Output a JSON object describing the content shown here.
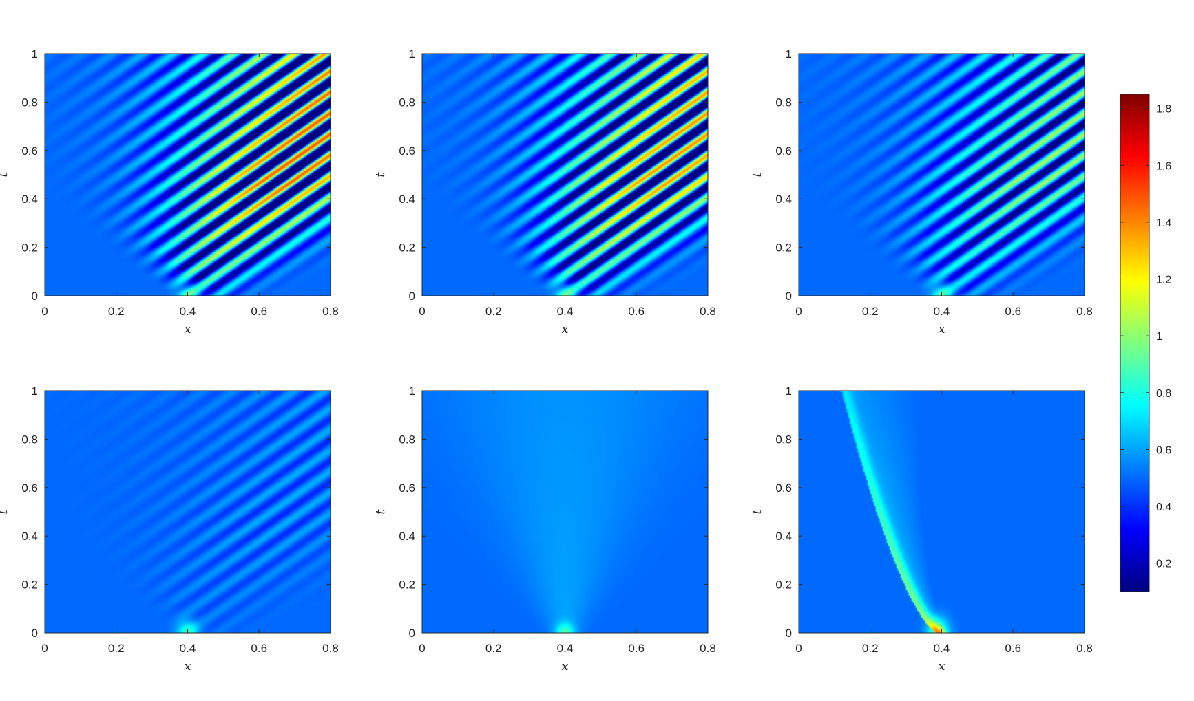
{
  "figure": {
    "layout": "2x3 grid of heatmaps with one shared vertical colorbar on the right"
  },
  "chart_data": [
    {
      "type": "heatmap",
      "panel": "row1-col1",
      "xlabel": "x",
      "ylabel": "t",
      "xlim": [
        0,
        0.8
      ],
      "ylim": [
        0,
        1
      ],
      "xticks": [
        "0",
        "0.2",
        "0.4",
        "0.6",
        "0.8"
      ],
      "yticks": [
        "0",
        "0.2",
        "0.4",
        "0.6",
        "0.8",
        "1"
      ],
      "pattern": "waves",
      "background_value": 0.5,
      "source_x": 0.4,
      "wave_amplitude": 1.0
    },
    {
      "type": "heatmap",
      "panel": "row1-col2",
      "xlabel": "x",
      "ylabel": "t",
      "xlim": [
        0,
        0.8
      ],
      "ylim": [
        0,
        1
      ],
      "xticks": [
        "0",
        "0.2",
        "0.4",
        "0.6",
        "0.8"
      ],
      "yticks": [
        "0",
        "0.2",
        "0.4",
        "0.6",
        "0.8",
        "1"
      ],
      "pattern": "waves",
      "background_value": 0.5,
      "source_x": 0.4,
      "wave_amplitude": 0.9
    },
    {
      "type": "heatmap",
      "panel": "row1-col3",
      "xlabel": "x",
      "ylabel": "t",
      "xlim": [
        0,
        0.8
      ],
      "ylim": [
        0,
        1
      ],
      "xticks": [
        "0",
        "0.2",
        "0.4",
        "0.6",
        "0.8"
      ],
      "yticks": [
        "0",
        "0.2",
        "0.4",
        "0.6",
        "0.8",
        "1"
      ],
      "pattern": "waves",
      "background_value": 0.5,
      "source_x": 0.4,
      "wave_amplitude": 0.55
    },
    {
      "type": "heatmap",
      "panel": "row2-col1",
      "xlabel": "x",
      "ylabel": "t",
      "xlim": [
        0,
        0.8
      ],
      "ylim": [
        0,
        1
      ],
      "xticks": [
        "0",
        "0.2",
        "0.4",
        "0.6",
        "0.8"
      ],
      "yticks": [
        "0",
        "0.2",
        "0.4",
        "0.6",
        "0.8",
        "1"
      ],
      "pattern": "faint-waves",
      "background_value": 0.5,
      "source_x": 0.4,
      "wave_amplitude": 0.12
    },
    {
      "type": "heatmap",
      "panel": "row2-col2",
      "xlabel": "x",
      "ylabel": "t",
      "xlim": [
        0,
        0.8
      ],
      "ylim": [
        0,
        1
      ],
      "xticks": [
        "0",
        "0.2",
        "0.4",
        "0.6",
        "0.8"
      ],
      "yticks": [
        "0",
        "0.2",
        "0.4",
        "0.6",
        "0.8",
        "1"
      ],
      "pattern": "diffusion",
      "background_value": 0.5,
      "source_x": 0.4,
      "wave_amplitude": 0.1
    },
    {
      "type": "heatmap",
      "panel": "row2-col3",
      "xlabel": "x",
      "ylabel": "t",
      "xlim": [
        0,
        0.8
      ],
      "ylim": [
        0,
        1
      ],
      "xticks": [
        "0",
        "0.2",
        "0.4",
        "0.6",
        "0.8"
      ],
      "yticks": [
        "0",
        "0.2",
        "0.4",
        "0.6",
        "0.8",
        "1"
      ],
      "pattern": "drift",
      "background_value": 0.5,
      "source_x": 0.4,
      "front_x_at_t1": 0.13,
      "wave_amplitude": 0.35
    }
  ],
  "colorbar": {
    "colormap": "jet",
    "range": [
      0.1,
      1.85
    ],
    "ticks": [
      {
        "value": 1.8,
        "label": "1.8"
      },
      {
        "value": 1.6,
        "label": "1.6"
      },
      {
        "value": 1.4,
        "label": "1.4"
      },
      {
        "value": 1.2,
        "label": "1.2"
      },
      {
        "value": 1.0,
        "label": "1"
      },
      {
        "value": 0.8,
        "label": "0.8"
      },
      {
        "value": 0.6,
        "label": "0.6"
      },
      {
        "value": 0.4,
        "label": "0.4"
      },
      {
        "value": 0.2,
        "label": "0.2"
      }
    ]
  }
}
